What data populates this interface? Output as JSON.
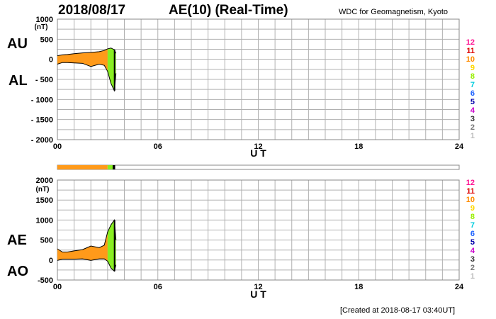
{
  "header": {
    "date": "2018/08/17",
    "title": "AE(10) (Real-Time)",
    "org": "WDC for Geomagnetism, Kyoto"
  },
  "footer": {
    "created": "[Created at 2018-08-17 03:40UT]"
  },
  "labels": {
    "au": "AU",
    "al": "AL",
    "ae": "AE",
    "ao": "AO",
    "ut": "U T",
    "unit": "(nT)"
  },
  "station_levels": [
    "12",
    "11",
    "10",
    "9",
    "8",
    "7",
    "6",
    "5",
    "4",
    "3",
    "2",
    "1"
  ],
  "colors": {
    "level_colors": [
      "#ff1493",
      "#dd0000",
      "#ff8c00",
      "#ffd700",
      "#99ee00",
      "#00ccdd",
      "#1e63ff",
      "#0000aa",
      "#cc00cc",
      "#333333",
      "#777777",
      "#bbbbbb"
    ],
    "fill_orange": "#ff9a1a",
    "fill_green": "#88ee22",
    "line": "#000000",
    "grid": "#b0b0b0"
  },
  "chart_data": [
    {
      "type": "area",
      "name": "AU/AL",
      "x_ticks": [
        "00",
        "06",
        "12",
        "18",
        "24"
      ],
      "xlim": [
        0,
        24
      ],
      "ylim": [
        -2000,
        1000
      ],
      "y_ticks": [
        "1000",
        "500",
        "0",
        "- 500",
        "- 1000",
        "- 1500",
        "- 2000"
      ],
      "xlabel": "U T",
      "ylabel": "(nT)",
      "grid": true,
      "series": [
        {
          "name": "AU",
          "x": [
            0,
            0.3,
            0.6,
            1.0,
            1.5,
            2.0,
            2.5,
            2.8,
            3.0,
            3.2,
            3.4,
            3.5
          ],
          "values": [
            90,
            110,
            120,
            140,
            160,
            170,
            190,
            220,
            260,
            280,
            240,
            150
          ]
        },
        {
          "name": "AL",
          "x": [
            0,
            0.3,
            0.6,
            1.0,
            1.5,
            2.0,
            2.5,
            2.8,
            3.0,
            3.2,
            3.4,
            3.5
          ],
          "values": [
            -120,
            -80,
            -80,
            -90,
            -100,
            -180,
            -120,
            -150,
            -300,
            -600,
            -780,
            -350
          ]
        }
      ]
    },
    {
      "type": "area",
      "name": "AE/AO",
      "x_ticks": [
        "00",
        "06",
        "12",
        "18",
        "24"
      ],
      "xlim": [
        0,
        24
      ],
      "ylim": [
        -500,
        2000
      ],
      "y_ticks": [
        "2000",
        "1500",
        "1000",
        "500",
        "0",
        "-500"
      ],
      "xlabel": "U T",
      "ylabel": "(nT)",
      "grid": true,
      "series": [
        {
          "name": "AE",
          "x": [
            0,
            0.3,
            0.6,
            1.0,
            1.5,
            2.0,
            2.5,
            2.8,
            3.0,
            3.2,
            3.4,
            3.5
          ],
          "values": [
            280,
            200,
            200,
            230,
            260,
            350,
            310,
            370,
            700,
            880,
            1000,
            500
          ]
        },
        {
          "name": "AO",
          "x": [
            0,
            0.3,
            0.6,
            1.0,
            1.5,
            2.0,
            2.5,
            2.8,
            3.0,
            3.2,
            3.4,
            3.5
          ],
          "values": [
            -10,
            20,
            20,
            20,
            30,
            -10,
            30,
            30,
            -30,
            -200,
            -280,
            -120
          ]
        }
      ]
    }
  ],
  "coverage_bar": {
    "segments": [
      {
        "from": 0,
        "to": 3.0,
        "color": "#ff9a1a"
      },
      {
        "from": 3.0,
        "to": 3.3,
        "color": "#88ee22"
      },
      {
        "from": 3.3,
        "to": 3.45,
        "color": "#000000"
      }
    ]
  }
}
